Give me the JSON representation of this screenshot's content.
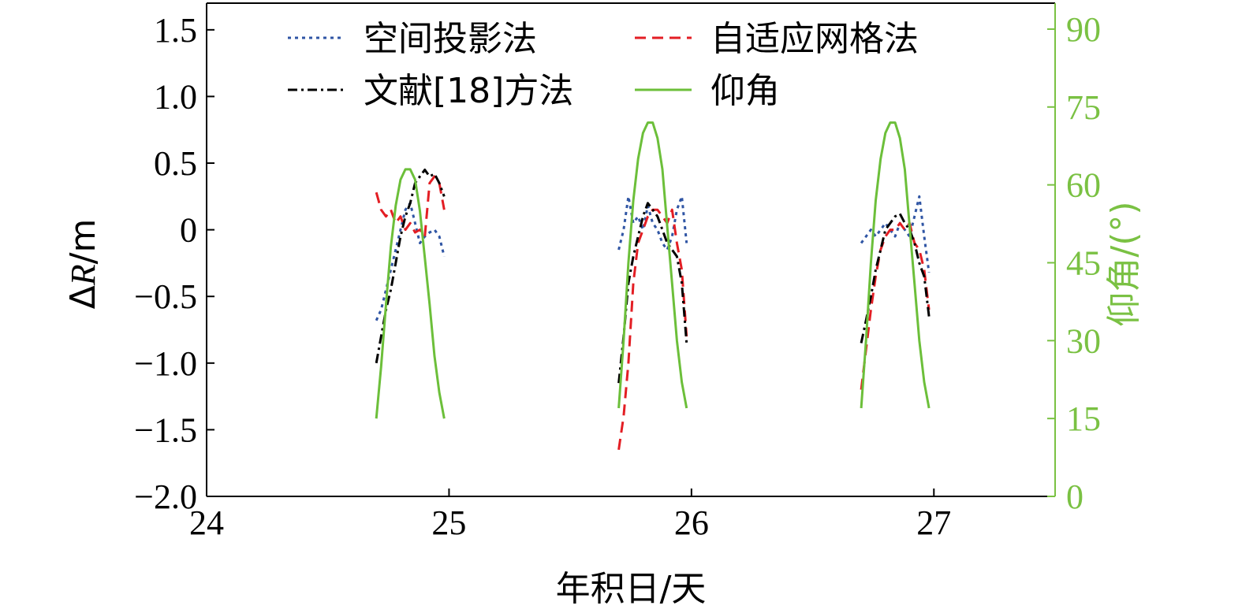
{
  "chart_data": {
    "type": "line",
    "title": "",
    "xlabel": "年积日/天",
    "ylabel_parts": {
      "delta": "Δ",
      "var": "R",
      "unit": "/m"
    },
    "y2label": "仰角/(°)",
    "xlim": [
      24,
      27.5
    ],
    "ylim": [
      -2.0,
      1.7
    ],
    "y2lim": [
      0,
      95
    ],
    "x_ticks": [
      24,
      25,
      26,
      27
    ],
    "x_tick_labels": [
      "24",
      "25",
      "26",
      "27"
    ],
    "y_ticks": [
      1.5,
      1.0,
      0.5,
      0,
      -0.5,
      -1.0,
      -1.5,
      -2.0
    ],
    "y_tick_labels": [
      "1.5",
      "1.0",
      "0.5",
      "0",
      "−0.5",
      "−1.0",
      "−1.5",
      "−2.0"
    ],
    "y2_ticks": [
      90,
      75,
      60,
      45,
      30,
      15,
      0
    ],
    "y2_tick_labels": [
      "90",
      "75",
      "60",
      "45",
      "30",
      "15",
      "0"
    ],
    "grid": false,
    "legend_position": "top",
    "colors": {
      "axis": "#000000",
      "right_axis": "#7ac143",
      "blue": "#2f55a4",
      "red": "#e31e24",
      "black": "#000000",
      "green": "#6cbf3a"
    },
    "series": [
      {
        "name": "空间投影法",
        "axis": "left",
        "color": "#2f55a4",
        "dash": "4,5",
        "width": 3,
        "passes": [
          {
            "x": [
              24.7,
              24.72,
              24.74,
              24.76,
              24.78,
              24.8,
              24.82,
              24.84,
              24.86,
              24.88,
              24.9,
              24.92,
              24.94,
              24.96,
              24.98
            ],
            "y": [
              -0.68,
              -0.6,
              -0.45,
              -0.3,
              -0.15,
              0.0,
              0.15,
              0.2,
              0.05,
              -0.1,
              -0.05,
              -0.02,
              0.0,
              -0.05,
              -0.2
            ]
          },
          {
            "x": [
              25.7,
              25.72,
              25.74,
              25.76,
              25.78,
              25.8,
              25.82,
              25.84,
              25.86,
              25.88,
              25.9,
              25.92,
              25.94,
              25.96,
              25.98
            ],
            "y": [
              -0.15,
              0.0,
              0.25,
              0.05,
              0.1,
              0.0,
              0.18,
              0.05,
              0.0,
              -0.1,
              -0.15,
              -0.05,
              0.15,
              0.25,
              -0.1
            ]
          },
          {
            "x": [
              26.7,
              26.72,
              26.74,
              26.76,
              26.78,
              26.8,
              26.82,
              26.84,
              26.86,
              26.88,
              26.9,
              26.92,
              26.94,
              26.96,
              26.98
            ],
            "y": [
              -0.1,
              -0.05,
              0.0,
              -0.05,
              0.0,
              0.05,
              0.0,
              -0.05,
              0.05,
              0.0,
              -0.05,
              0.1,
              0.25,
              -0.05,
              -0.32
            ]
          }
        ]
      },
      {
        "name": "自适应网格法",
        "axis": "left",
        "color": "#e31e24",
        "dash": "14,8",
        "width": 3,
        "passes": [
          {
            "x": [
              24.7,
              24.72,
              24.74,
              24.76,
              24.78,
              24.8,
              24.82,
              24.84,
              24.86,
              24.88,
              24.9,
              24.92,
              24.94,
              24.96,
              24.98
            ],
            "y": [
              0.28,
              0.15,
              0.1,
              0.15,
              0.05,
              0.1,
              0.0,
              0.05,
              -0.02,
              0.0,
              -0.05,
              0.35,
              0.4,
              0.35,
              0.15
            ]
          },
          {
            "x": [
              25.7,
              25.72,
              25.74,
              25.76,
              25.78,
              25.8,
              25.82,
              25.84,
              25.86,
              25.88,
              25.9,
              25.92,
              25.94,
              25.96,
              25.98
            ],
            "y": [
              -1.65,
              -1.4,
              -1.0,
              -0.4,
              -0.1,
              0.0,
              0.1,
              0.15,
              0.15,
              0.1,
              0.05,
              0.15,
              -0.1,
              -0.3,
              -0.8
            ]
          },
          {
            "x": [
              26.7,
              26.72,
              26.74,
              26.76,
              26.78,
              26.8,
              26.82,
              26.84,
              26.86,
              26.88,
              26.9,
              26.92,
              26.94,
              26.96,
              26.98
            ],
            "y": [
              -1.2,
              -0.9,
              -0.6,
              -0.35,
              -0.15,
              -0.05,
              0.0,
              0.0,
              0.05,
              0.0,
              0.05,
              -0.1,
              -0.15,
              -0.3,
              -0.6
            ]
          }
        ]
      },
      {
        "name": "文献[18]方法",
        "axis": "left",
        "color": "#000000",
        "dash": "12,5,3,5",
        "width": 3,
        "passes": [
          {
            "x": [
              24.7,
              24.72,
              24.74,
              24.76,
              24.78,
              24.8,
              24.82,
              24.84,
              24.86,
              24.88,
              24.9,
              24.92,
              24.94,
              24.96,
              24.98
            ],
            "y": [
              -1.0,
              -0.8,
              -0.6,
              -0.45,
              -0.25,
              -0.05,
              0.1,
              0.2,
              0.35,
              0.4,
              0.45,
              0.4,
              0.42,
              0.35,
              0.25
            ]
          },
          {
            "x": [
              25.7,
              25.72,
              25.74,
              25.76,
              25.78,
              25.8,
              25.82,
              25.84,
              25.86,
              25.88,
              25.9,
              25.92,
              25.94,
              25.96,
              25.98
            ],
            "y": [
              -1.15,
              -0.8,
              -0.4,
              -0.2,
              -0.05,
              0.1,
              0.2,
              0.15,
              0.1,
              0.0,
              -0.1,
              -0.15,
              -0.2,
              -0.4,
              -0.85
            ]
          },
          {
            "x": [
              26.7,
              26.72,
              26.74,
              26.76,
              26.78,
              26.8,
              26.82,
              26.84,
              26.86,
              26.88,
              26.9,
              26.92,
              26.94,
              26.96,
              26.98
            ],
            "y": [
              -0.85,
              -0.68,
              -0.5,
              -0.3,
              -0.15,
              0.0,
              0.05,
              0.1,
              0.12,
              0.05,
              0.0,
              -0.1,
              -0.25,
              -0.35,
              -0.65
            ]
          }
        ]
      },
      {
        "name": "仰角",
        "axis": "right",
        "color": "#6cbf3a",
        "dash": "",
        "width": 3,
        "passes": [
          {
            "x": [
              24.7,
              24.72,
              24.74,
              24.76,
              24.78,
              24.8,
              24.82,
              24.84,
              24.86,
              24.88,
              24.9,
              24.92,
              24.94,
              24.96,
              24.98
            ],
            "y": [
              15,
              25,
              37,
              48,
              56,
              61,
              63,
              63,
              61,
              55,
              46,
              37,
              27,
              20,
              15
            ]
          },
          {
            "x": [
              25.7,
              25.72,
              25.74,
              25.76,
              25.78,
              25.8,
              25.82,
              25.84,
              25.86,
              25.88,
              25.9,
              25.92,
              25.94,
              25.96,
              25.98
            ],
            "y": [
              17,
              30,
              45,
              57,
              65,
              70,
              72,
              72,
              69,
              63,
              52,
              41,
              30,
              22,
              17
            ]
          },
          {
            "x": [
              26.7,
              26.72,
              26.74,
              26.76,
              26.78,
              26.8,
              26.82,
              26.84,
              26.86,
              26.88,
              26.9,
              26.92,
              26.94,
              26.96,
              26.98
            ],
            "y": [
              17,
              30,
              45,
              57,
              65,
              70,
              72,
              72,
              69,
              63,
              52,
              41,
              30,
              22,
              17
            ]
          }
        ]
      }
    ]
  }
}
